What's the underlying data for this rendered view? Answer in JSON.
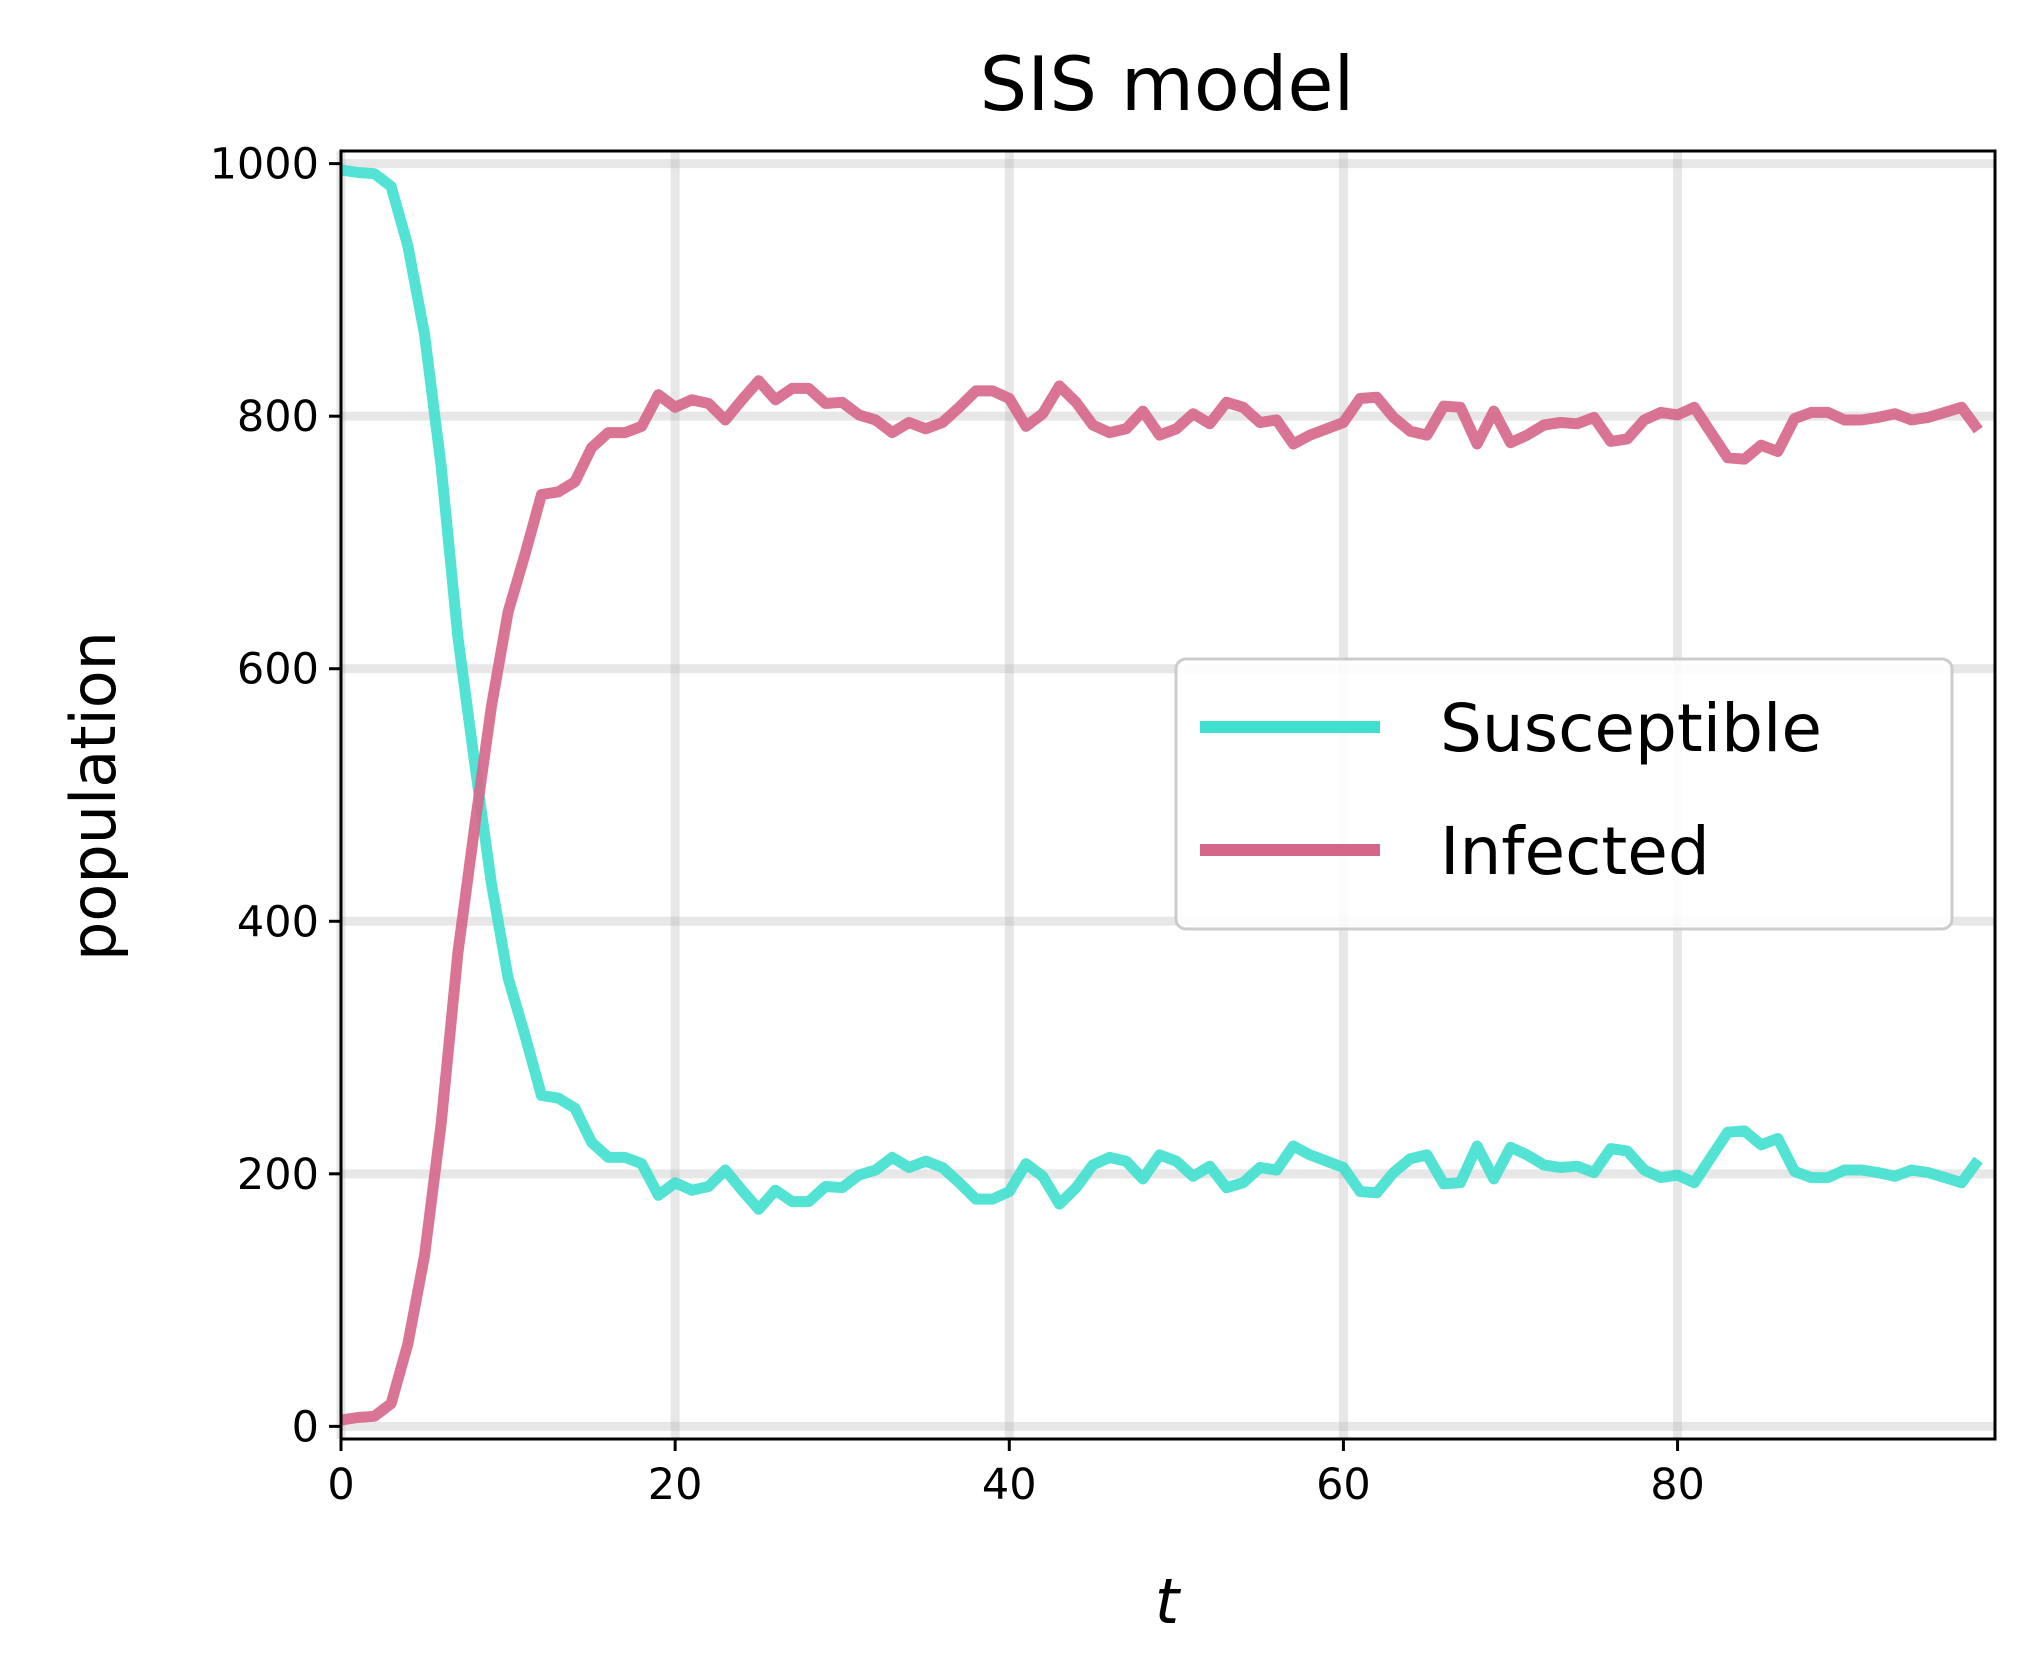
{
  "chart_data": {
    "type": "line",
    "title": "SIS model",
    "xlabel": "t",
    "ylabel": "population",
    "xlim": [
      0,
      99
    ],
    "ylim": [
      -10,
      1010
    ],
    "xticks": [
      0,
      20,
      40,
      60,
      80
    ],
    "yticks": [
      0,
      200,
      400,
      600,
      800,
      1000
    ],
    "grid": true,
    "legend_position": "center-right",
    "series": [
      {
        "name": "Susceptible",
        "color": "#40E0D0",
        "values": [
          995,
          993,
          992,
          982,
          935,
          865,
          760,
          625,
          525,
          430,
          355,
          310,
          262,
          260,
          252,
          225,
          213,
          213,
          208,
          183,
          193,
          187,
          190,
          203,
          187,
          172,
          187,
          178,
          178,
          190,
          189,
          199,
          203,
          213,
          205,
          210,
          205,
          193,
          180,
          180,
          186,
          208,
          198,
          176,
          189,
          207,
          213,
          210,
          196,
          215,
          210,
          198,
          206,
          189,
          193,
          205,
          203,
          222,
          215,
          210,
          205,
          186,
          185,
          201,
          212,
          215,
          192,
          193,
          222,
          196,
          221,
          215,
          207,
          205,
          206,
          201,
          220,
          218,
          203,
          197,
          199,
          193,
          213,
          233,
          234,
          223,
          228,
          202,
          197,
          197,
          203,
          203,
          201,
          198,
          203,
          201,
          197,
          193,
          211
        ]
      },
      {
        "name": "Infected",
        "color": "#D6658A",
        "values": [
          5,
          7,
          8,
          18,
          65,
          135,
          240,
          375,
          475,
          570,
          645,
          690,
          738,
          740,
          748,
          775,
          787,
          787,
          792,
          817,
          807,
          813,
          810,
          797,
          813,
          828,
          813,
          822,
          822,
          810,
          811,
          801,
          797,
          787,
          795,
          790,
          795,
          807,
          820,
          820,
          814,
          792,
          802,
          824,
          811,
          793,
          787,
          790,
          804,
          785,
          790,
          802,
          794,
          811,
          807,
          795,
          797,
          778,
          785,
          790,
          795,
          814,
          815,
          799,
          788,
          785,
          808,
          807,
          778,
          804,
          779,
          785,
          793,
          795,
          794,
          799,
          780,
          782,
          797,
          803,
          801,
          807,
          787,
          767,
          766,
          777,
          772,
          798,
          803,
          803,
          797,
          797,
          799,
          802,
          797,
          799,
          803,
          807,
          789
        ]
      }
    ]
  }
}
